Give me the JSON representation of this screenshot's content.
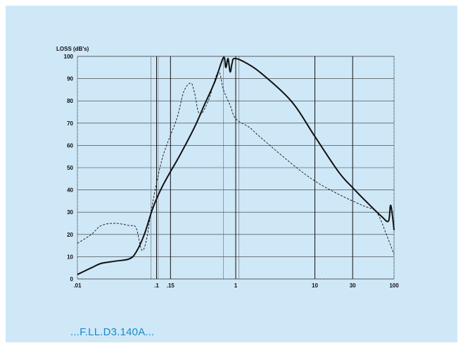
{
  "caption": "...F.LL.D3.140A...",
  "chart_data": {
    "type": "line",
    "title": "",
    "xlabel": "",
    "ylabel": "LOSS (dB's)",
    "xscale": "log",
    "xlim": [
      0.01,
      100
    ],
    "ylim": [
      0,
      100
    ],
    "yticks": [
      "0",
      "10",
      "20",
      "30",
      "40",
      "50",
      "60",
      "70",
      "80",
      "90",
      "100"
    ],
    "xtick_labels": [
      {
        "value": 0.01,
        "label": ".01"
      },
      {
        "value": 0.1,
        "label": ".1"
      },
      {
        "value": 0.15,
        "label": ".15"
      },
      {
        "value": 1,
        "label": "1"
      },
      {
        "value": 10,
        "label": "10"
      },
      {
        "value": 30,
        "label": "30"
      },
      {
        "value": 100,
        "label": "100"
      }
    ],
    "grid_x_heavy": [
      0.1,
      0.15,
      1,
      10,
      30
    ],
    "grid_x_light": [
      0.085,
      0.105,
      0.7,
      1.1
    ],
    "grid": true,
    "series": [
      {
        "style": "solid",
        "points": [
          [
            0.01,
            2
          ],
          [
            0.015,
            5
          ],
          [
            0.02,
            7
          ],
          [
            0.03,
            8
          ],
          [
            0.045,
            9
          ],
          [
            0.055,
            12
          ],
          [
            0.07,
            20
          ],
          [
            0.09,
            32
          ],
          [
            0.12,
            42
          ],
          [
            0.2,
            56
          ],
          [
            0.3,
            68
          ],
          [
            0.4,
            78
          ],
          [
            0.55,
            89
          ],
          [
            0.7,
            99.5
          ],
          [
            0.75,
            95
          ],
          [
            0.8,
            99
          ],
          [
            0.85,
            93
          ],
          [
            0.9,
            97
          ],
          [
            0.95,
            99
          ],
          [
            1.2,
            98
          ],
          [
            2,
            93
          ],
          [
            5,
            80
          ],
          [
            10,
            64
          ],
          [
            20,
            48
          ],
          [
            30,
            41
          ],
          [
            50,
            33
          ],
          [
            70,
            28
          ],
          [
            85,
            26
          ],
          [
            90,
            33
          ],
          [
            95,
            29
          ],
          [
            100,
            22
          ]
        ]
      },
      {
        "style": "dashed",
        "points": [
          [
            0.01,
            16
          ],
          [
            0.015,
            20
          ],
          [
            0.02,
            24
          ],
          [
            0.03,
            25
          ],
          [
            0.045,
            24
          ],
          [
            0.055,
            23
          ],
          [
            0.065,
            13
          ],
          [
            0.075,
            18
          ],
          [
            0.09,
            35
          ],
          [
            0.12,
            55
          ],
          [
            0.18,
            72
          ],
          [
            0.22,
            84
          ],
          [
            0.27,
            88
          ],
          [
            0.3,
            84
          ],
          [
            0.35,
            74
          ],
          [
            0.45,
            80
          ],
          [
            0.6,
            93
          ],
          [
            0.7,
            85
          ],
          [
            0.85,
            78
          ],
          [
            1,
            72
          ],
          [
            1.5,
            68
          ],
          [
            2,
            64
          ],
          [
            5,
            52
          ],
          [
            10,
            44
          ],
          [
            20,
            38
          ],
          [
            40,
            33
          ],
          [
            60,
            30
          ],
          [
            80,
            20
          ],
          [
            100,
            11
          ]
        ]
      }
    ]
  }
}
